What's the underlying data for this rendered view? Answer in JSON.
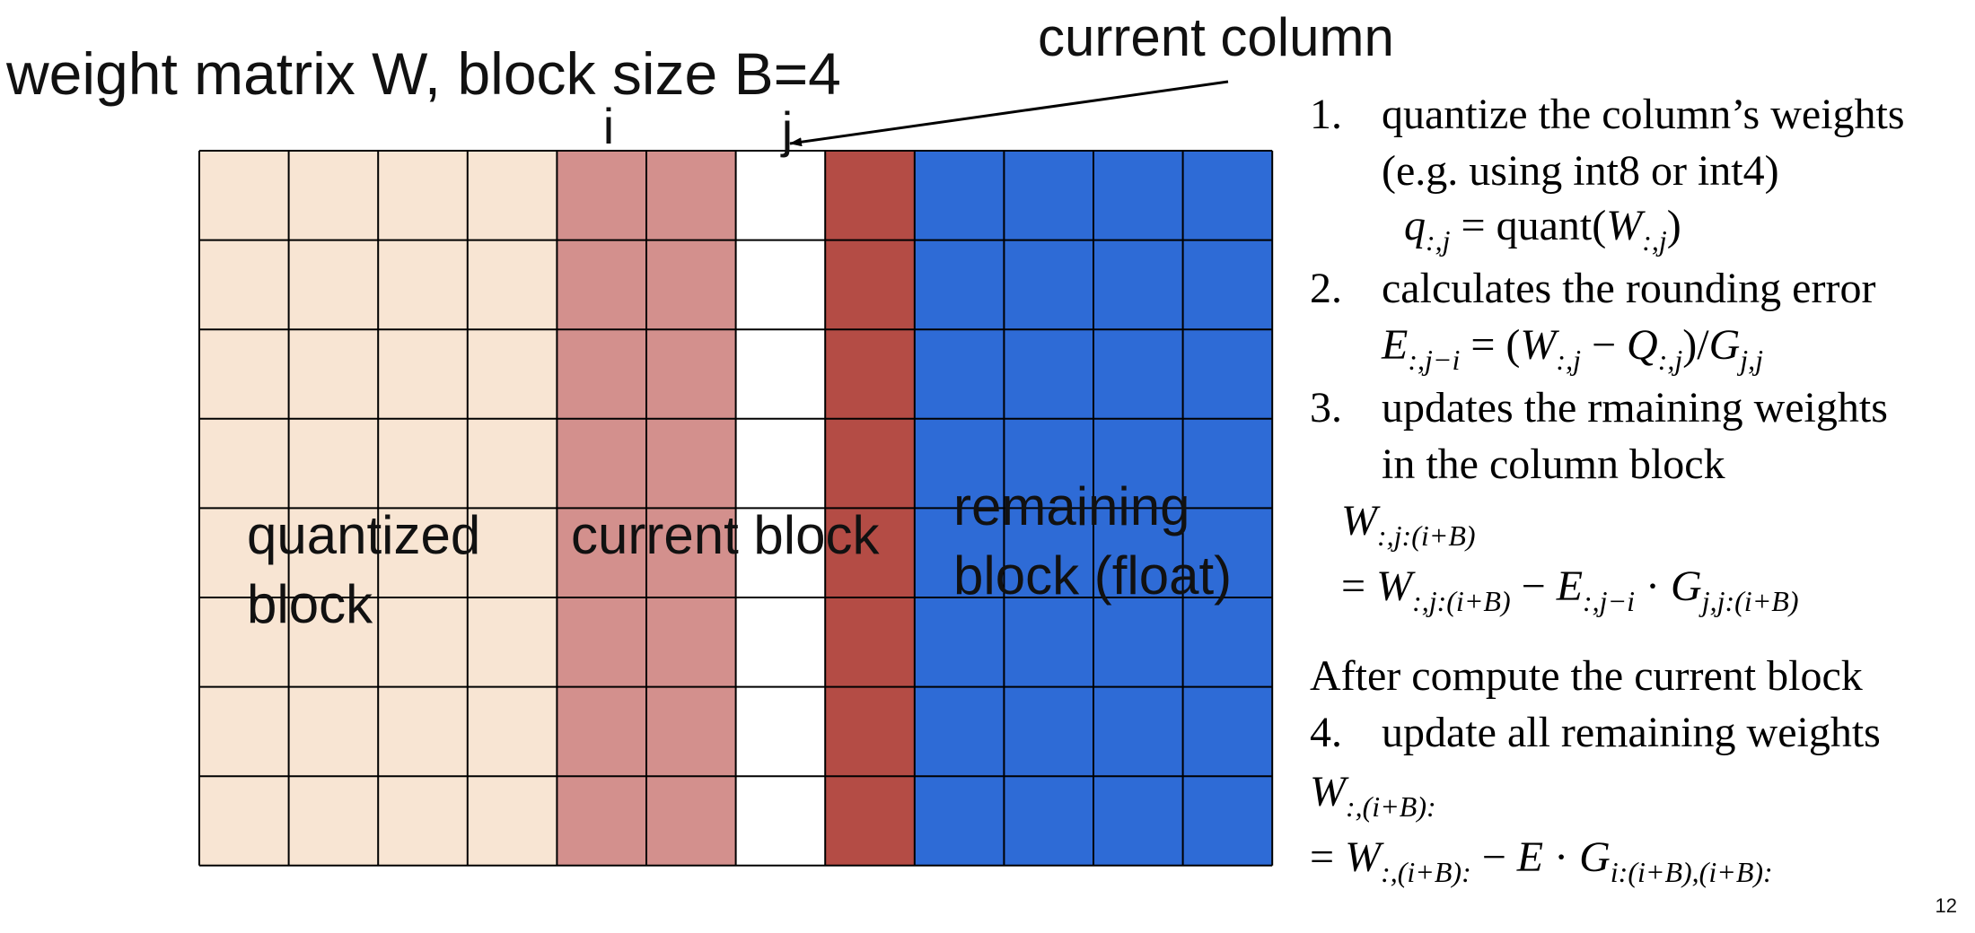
{
  "title": "weight matrix W, block size B=4",
  "arrow_label": "current column",
  "column_markers": [
    "i",
    "j"
  ],
  "region_labels": [
    {
      "lines": [
        "quantized",
        "block"
      ]
    },
    {
      "lines": [
        "current block"
      ]
    },
    {
      "lines": [
        "remaining",
        "block (float)"
      ]
    }
  ],
  "steps": [
    {
      "number": "1.",
      "lines": [
        "quantize the column’s weights",
        "(e.g. using int8 or int4)"
      ],
      "formulas": [
        [
          {
            "text": "q",
            "sub": ":,j"
          },
          {
            "text": " = quant("
          },
          {
            "text": "W",
            "sub": ":,j"
          },
          {
            "text": ")"
          }
        ]
      ]
    },
    {
      "number": "2.",
      "lines": [
        "calculates the rounding error"
      ],
      "formulas": [
        [
          {
            "text": "E",
            "sub": ":,j−i"
          },
          {
            "text": " = ("
          },
          {
            "text": "W",
            "sub": ":,j"
          },
          {
            "text": " − "
          },
          {
            "text": "Q",
            "sub": ":,j"
          },
          {
            "text": ")/"
          },
          {
            "text": "G",
            "sub": "j,j"
          }
        ]
      ]
    },
    {
      "number": "3.",
      "lines": [
        "updates the rmaining weights",
        "in the column block"
      ],
      "formulas": [
        [
          {
            "text": "W",
            "sub": ":,j:(i+B)"
          }
        ],
        [
          {
            "text": "= "
          },
          {
            "text": "W",
            "sub": ":,j:(i+B)"
          },
          {
            "text": " − "
          },
          {
            "text": "E",
            "sub": ":,j−i"
          },
          {
            "text": " · "
          },
          {
            "text": "G",
            "sub": "j,j:(i+B)"
          }
        ]
      ]
    },
    {
      "number": "4.",
      "lines": [
        "update all remaining weights"
      ],
      "formulas": [
        [
          {
            "text": "W",
            "sub": ":,(i+B):"
          }
        ],
        [
          {
            "text": "= "
          },
          {
            "text": "W",
            "sub": ":,(i+B):"
          },
          {
            "text": " − "
          },
          {
            "text": "E"
          },
          {
            "text": " · "
          },
          {
            "text": "G",
            "sub": "i:(i+B),(i+B):"
          }
        ]
      ]
    }
  ],
  "after_note": "After compute the current block",
  "page_number": "12"
}
